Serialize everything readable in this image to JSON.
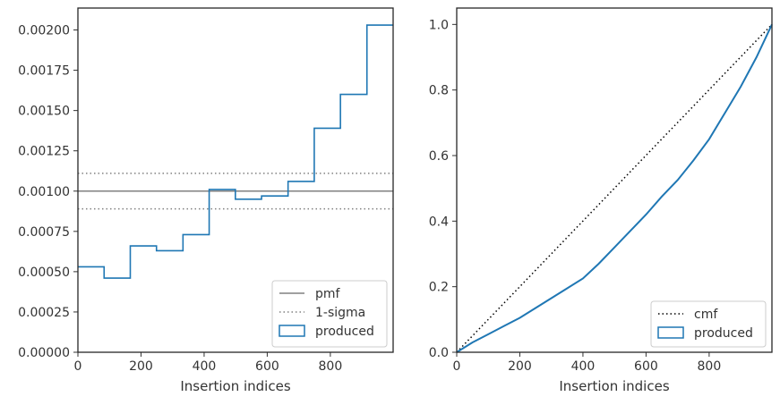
{
  "chart_data": [
    {
      "type": "line",
      "xlabel": "Insertion indices",
      "ylabel": "",
      "xlim": [
        0,
        999
      ],
      "ylim": [
        0,
        0.002136
      ],
      "x_ticks": [
        0,
        200,
        400,
        600,
        800
      ],
      "y_ticks": [
        0,
        0.00025,
        0.0005,
        0.00075,
        0.001,
        0.00125,
        0.0015,
        0.00175,
        0.002
      ],
      "y_tick_labels": [
        "0.00000",
        "0.00025",
        "0.00050",
        "0.00075",
        "0.00100",
        "0.00125",
        "0.00150",
        "0.00175",
        "0.00200"
      ],
      "legend_position": "lower-right",
      "series": [
        {
          "name": "pmf",
          "style": "solid",
          "color": "#808080",
          "x": [
            0,
            999
          ],
          "y": [
            0.001,
            0.001
          ]
        },
        {
          "name": "1-sigma",
          "style": "dotted",
          "color": "#808080",
          "levels": [
            0.00111,
            0.00089
          ]
        },
        {
          "name": "produced",
          "style": "step",
          "color": "#1f77b4",
          "bin_edges": [
            0,
            83,
            166,
            249,
            333,
            416,
            499,
            582,
            666,
            749,
            832,
            916,
            999
          ],
          "values": [
            0.00053,
            0.00046,
            0.00066,
            0.00063,
            0.00073,
            0.00101,
            0.00095,
            0.00097,
            0.00106,
            0.00139,
            0.0016,
            0.00203
          ]
        }
      ]
    },
    {
      "type": "line",
      "xlabel": "Insertion indices",
      "ylabel": "",
      "xlim": [
        0,
        999
      ],
      "ylim": [
        0,
        1.05
      ],
      "x_ticks": [
        0,
        200,
        400,
        600,
        800
      ],
      "y_ticks": [
        0,
        0.2,
        0.4,
        0.6,
        0.8,
        1.0
      ],
      "y_tick_labels": [
        "0.0",
        "0.2",
        "0.4",
        "0.6",
        "0.8",
        "1.0"
      ],
      "legend_position": "lower-right",
      "series": [
        {
          "name": "cmf",
          "style": "dotted",
          "color": "#000000",
          "x": [
            0,
            999
          ],
          "y": [
            0,
            1
          ]
        },
        {
          "name": "produced",
          "style": "step",
          "color": "#1f77b4",
          "x": [
            0,
            50,
            100,
            150,
            200,
            250,
            300,
            350,
            400,
            450,
            500,
            550,
            600,
            650,
            700,
            750,
            800,
            850,
            900,
            950,
            999
          ],
          "y": [
            0,
            0.03,
            0.055,
            0.08,
            0.105,
            0.135,
            0.165,
            0.195,
            0.225,
            0.27,
            0.32,
            0.37,
            0.42,
            0.475,
            0.525,
            0.585,
            0.65,
            0.73,
            0.81,
            0.9,
            1.0
          ]
        }
      ]
    }
  ]
}
